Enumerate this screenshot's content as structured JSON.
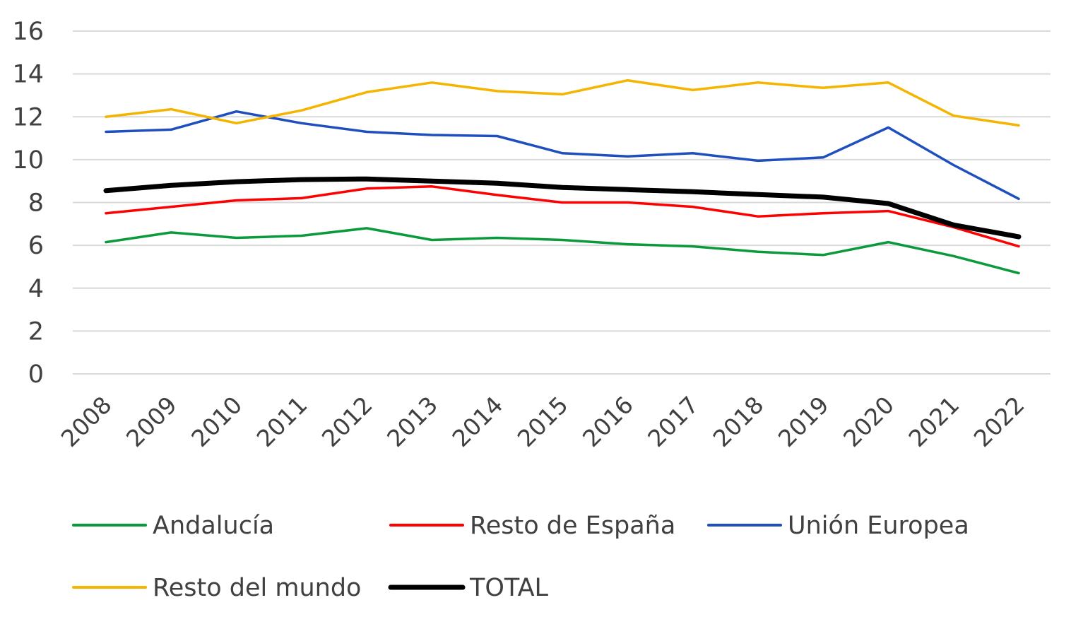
{
  "chart_data": {
    "type": "line",
    "title": "",
    "xlabel": "",
    "ylabel": "",
    "ylim": [
      0,
      16
    ],
    "yticks": [
      "0",
      "2",
      "4",
      "6",
      "8",
      "10",
      "12",
      "14",
      "16"
    ],
    "grid": true,
    "legend_position": "bottom",
    "categories": [
      "2008",
      "2009",
      "2010",
      "2011",
      "2012",
      "2013",
      "2014",
      "2015",
      "2016",
      "2017",
      "2018",
      "2019",
      "2020",
      "2021",
      "2022"
    ],
    "series": [
      {
        "name": "Andalucía",
        "color": "#0a9a3c",
        "width": "normal",
        "values": [
          6.15,
          6.6,
          6.35,
          6.45,
          6.8,
          6.25,
          6.35,
          6.25,
          6.05,
          5.95,
          5.7,
          5.55,
          6.15,
          5.5,
          4.7
        ]
      },
      {
        "name": "Resto de España",
        "color": "#ff0000",
        "width": "normal",
        "values": [
          7.5,
          7.8,
          8.1,
          8.2,
          8.65,
          8.75,
          8.35,
          8.0,
          8.0,
          7.8,
          7.35,
          7.5,
          7.6,
          6.85,
          5.95
        ]
      },
      {
        "name": "Unión Europea",
        "color": "#1f4fbf",
        "width": "normal",
        "values": [
          11.3,
          11.4,
          12.25,
          11.7,
          11.3,
          11.15,
          11.1,
          10.3,
          10.15,
          10.3,
          9.95,
          10.1,
          11.5,
          9.75,
          8.17
        ]
      },
      {
        "name": "Resto del mundo",
        "color": "#f5b400",
        "width": "normal",
        "values": [
          12.0,
          12.35,
          11.7,
          12.3,
          13.15,
          13.6,
          13.2,
          13.05,
          13.7,
          13.25,
          13.6,
          13.35,
          13.6,
          12.05,
          11.6
        ]
      },
      {
        "name": "TOTAL",
        "color": "#000000",
        "width": "thick",
        "values": [
          8.55,
          8.8,
          8.97,
          9.07,
          9.1,
          9.0,
          8.9,
          8.7,
          8.6,
          8.5,
          8.37,
          8.25,
          7.95,
          6.95,
          6.4
        ]
      }
    ]
  }
}
